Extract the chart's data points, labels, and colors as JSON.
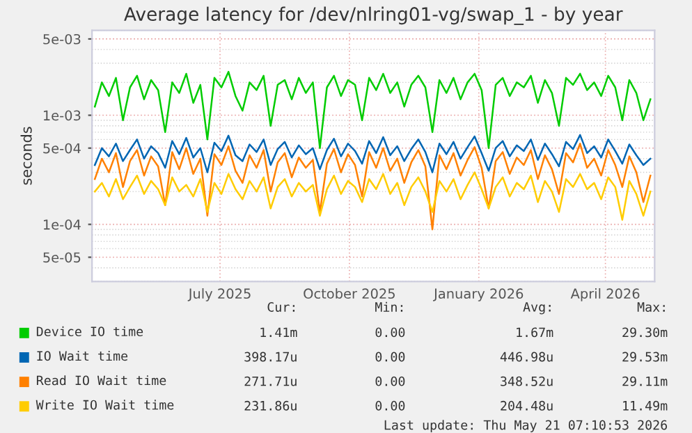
{
  "chart_data": {
    "type": "line",
    "title": "Average latency for /dev/nlring01-vg/swap_1 - by year",
    "ylabel": "seconds",
    "log": "y",
    "grid": true,
    "legend": "bottom",
    "marker": "none",
    "line_style": "solid",
    "xlim": [
      "2025-04-16",
      "2026-05-21"
    ],
    "xticks": [
      {
        "value": "2025-07-16",
        "label": "July 2025"
      },
      {
        "value": "2025-10-16",
        "label": "October 2025"
      },
      {
        "value": "2026-01-16",
        "label": "January 2026"
      },
      {
        "value": "2026-04-16",
        "label": "April 2026"
      }
    ],
    "ylim": [
      3e-05,
      0.006
    ],
    "yticks": [
      {
        "value": 5e-05,
        "label": "5e-05"
      },
      {
        "value": 0.0001,
        "label": "1e-04"
      },
      {
        "value": 0.0005,
        "label": "5e-04"
      },
      {
        "value": 0.001,
        "label": "1e-03"
      },
      {
        "value": 0.005,
        "label": "5e-03"
      }
    ],
    "x": [
      "2025-04-18",
      "2025-04-23",
      "2025-04-28",
      "2025-05-03",
      "2025-05-08",
      "2025-05-13",
      "2025-05-18",
      "2025-05-23",
      "2025-05-28",
      "2025-06-02",
      "2025-06-07",
      "2025-06-12",
      "2025-06-17",
      "2025-06-22",
      "2025-06-27",
      "2025-07-02",
      "2025-07-07",
      "2025-07-12",
      "2025-07-17",
      "2025-07-22",
      "2025-07-27",
      "2025-08-01",
      "2025-08-06",
      "2025-08-11",
      "2025-08-16",
      "2025-08-21",
      "2025-08-26",
      "2025-08-31",
      "2025-09-05",
      "2025-09-10",
      "2025-09-15",
      "2025-09-20",
      "2025-09-25",
      "2025-09-30",
      "2025-10-05",
      "2025-10-10",
      "2025-10-15",
      "2025-10-20",
      "2025-10-25",
      "2025-10-30",
      "2025-11-04",
      "2025-11-09",
      "2025-11-14",
      "2025-11-19",
      "2025-11-24",
      "2025-11-29",
      "2025-12-04",
      "2025-12-09",
      "2025-12-14",
      "2025-12-19",
      "2025-12-24",
      "2025-12-29",
      "2026-01-03",
      "2026-01-08",
      "2026-01-13",
      "2026-01-18",
      "2026-01-23",
      "2026-01-28",
      "2026-02-02",
      "2026-02-07",
      "2026-02-12",
      "2026-02-17",
      "2026-02-22",
      "2026-02-27",
      "2026-03-04",
      "2026-03-09",
      "2026-03-14",
      "2026-03-19",
      "2026-03-24",
      "2026-03-29",
      "2026-04-03",
      "2026-04-08",
      "2026-04-13",
      "2026-04-18",
      "2026-04-23",
      "2026-04-28",
      "2026-05-03",
      "2026-05-08",
      "2026-05-13",
      "2026-05-18"
    ],
    "series": [
      {
        "name": "Device IO time",
        "color": "#00cc00",
        "values": [
          0.0012,
          0.002,
          0.0015,
          0.0022,
          0.0009,
          0.0018,
          0.0023,
          0.0014,
          0.0021,
          0.0017,
          0.0007,
          0.002,
          0.0016,
          0.0024,
          0.0013,
          0.0019,
          0.0006,
          0.0022,
          0.0018,
          0.0025,
          0.0015,
          0.0011,
          0.002,
          0.0017,
          0.0023,
          0.0008,
          0.0019,
          0.0021,
          0.0014,
          0.0022,
          0.0016,
          0.002,
          0.0005,
          0.0018,
          0.0023,
          0.0015,
          0.0021,
          0.0019,
          0.0009,
          0.0022,
          0.0017,
          0.0024,
          0.0016,
          0.002,
          0.0012,
          0.0019,
          0.0023,
          0.0018,
          0.0007,
          0.0021,
          0.0016,
          0.0022,
          0.0014,
          0.002,
          0.0024,
          0.0017,
          0.0005,
          0.0019,
          0.0022,
          0.0015,
          0.002,
          0.0018,
          0.0023,
          0.0013,
          0.0021,
          0.0016,
          0.0008,
          0.0022,
          0.0019,
          0.0024,
          0.0017,
          0.002,
          0.0015,
          0.0023,
          0.0018,
          0.0009,
          0.0021,
          0.0016,
          0.0009,
          0.0014
        ]
      },
      {
        "name": "IO Wait time",
        "color": "#0066b3",
        "values": [
          0.00035,
          0.0005,
          0.00042,
          0.00055,
          0.00038,
          0.00048,
          0.0006,
          0.0004,
          0.00052,
          0.00045,
          0.00033,
          0.00058,
          0.00044,
          0.00062,
          0.00041,
          0.0005,
          0.0003,
          0.00056,
          0.00047,
          0.00065,
          0.00043,
          0.00038,
          0.00054,
          0.00046,
          0.0006,
          0.00035,
          0.00049,
          0.00057,
          0.00041,
          0.00053,
          0.00044,
          0.0005,
          0.00032,
          0.00048,
          0.00061,
          0.00042,
          0.00055,
          0.00047,
          0.00036,
          0.00058,
          0.00045,
          0.00063,
          0.00043,
          0.00052,
          0.00038,
          0.00049,
          0.0006,
          0.00046,
          0.0003,
          0.00055,
          0.00044,
          0.00057,
          0.0004,
          0.00051,
          0.00064,
          0.00045,
          0.00031,
          0.0005,
          0.00058,
          0.00042,
          0.00053,
          0.00047,
          0.0006,
          0.00039,
          0.00055,
          0.00044,
          0.00034,
          0.00057,
          0.00049,
          0.00066,
          0.00045,
          0.00052,
          0.00041,
          0.0006,
          0.00047,
          0.00036,
          0.00054,
          0.00043,
          0.00035,
          0.0004
        ]
      },
      {
        "name": "Read IO Wait time",
        "color": "#ff8000",
        "values": [
          0.00026,
          0.0004,
          0.0003,
          0.00045,
          0.00022,
          0.00038,
          0.00048,
          0.00028,
          0.00042,
          0.00034,
          0.00015,
          0.00046,
          0.00032,
          0.0005,
          0.00029,
          0.0004,
          0.00012,
          0.00044,
          0.00035,
          0.00052,
          0.00031,
          0.00024,
          0.00043,
          0.00033,
          0.00048,
          0.0002,
          0.00037,
          0.00045,
          0.00027,
          0.00041,
          0.00033,
          0.00039,
          0.00013,
          0.00036,
          0.00049,
          0.0003,
          0.00044,
          0.00035,
          0.00018,
          0.00046,
          0.00033,
          0.0005,
          0.00031,
          0.0004,
          0.00024,
          0.00037,
          0.00048,
          0.00034,
          9e-05,
          0.00043,
          0.00032,
          0.00045,
          0.00028,
          0.00039,
          0.00051,
          0.00033,
          0.00014,
          0.00038,
          0.00046,
          0.00029,
          0.00041,
          0.00035,
          0.00048,
          0.00026,
          0.00043,
          0.00032,
          0.00019,
          0.00045,
          0.00037,
          0.00055,
          0.00033,
          0.0004,
          0.00028,
          0.00048,
          0.00035,
          0.00022,
          0.00042,
          0.0003,
          0.00016,
          0.00028
        ]
      },
      {
        "name": "Write IO Wait time",
        "color": "#ffcc00",
        "values": [
          0.0002,
          0.00024,
          0.00018,
          0.00026,
          0.00017,
          0.00022,
          0.00028,
          0.00019,
          0.00025,
          0.00021,
          0.00015,
          0.00027,
          0.0002,
          0.00023,
          0.00018,
          0.00026,
          0.00013,
          0.00024,
          0.00019,
          0.00029,
          0.00021,
          0.00017,
          0.00025,
          0.0002,
          0.00027,
          0.00014,
          0.00022,
          0.00026,
          0.00018,
          0.00024,
          0.0002,
          0.00023,
          0.00012,
          0.00021,
          0.00028,
          0.00019,
          0.00025,
          0.00022,
          0.00016,
          0.00026,
          0.00021,
          0.00029,
          0.00019,
          0.00024,
          0.00015,
          0.00022,
          0.00027,
          0.0002,
          0.00013,
          0.00025,
          0.0002,
          0.00026,
          0.00017,
          0.00023,
          0.0003,
          0.00021,
          0.00014,
          0.00022,
          0.00027,
          0.00018,
          0.00024,
          0.00021,
          0.00028,
          0.00016,
          0.00025,
          0.0002,
          0.00013,
          0.00026,
          0.00022,
          0.00029,
          0.00021,
          0.00024,
          0.00017,
          0.00027,
          0.00022,
          0.00011,
          0.00025,
          0.00019,
          0.00012,
          0.0002
        ]
      }
    ],
    "annotations": [
      "Cur:",
      "Min:",
      "Avg:",
      "Max:",
      "1.41m",
      "0.00",
      "1.67m",
      "29.30m",
      "398.17u",
      "0.00",
      "446.98u",
      "29.53m",
      "271.71u",
      "0.00",
      "348.52u",
      "29.11m",
      "231.86u",
      "0.00",
      "204.48u",
      "11.49m",
      "Last update: Thu May 21 07:10:53 2026"
    ]
  }
}
